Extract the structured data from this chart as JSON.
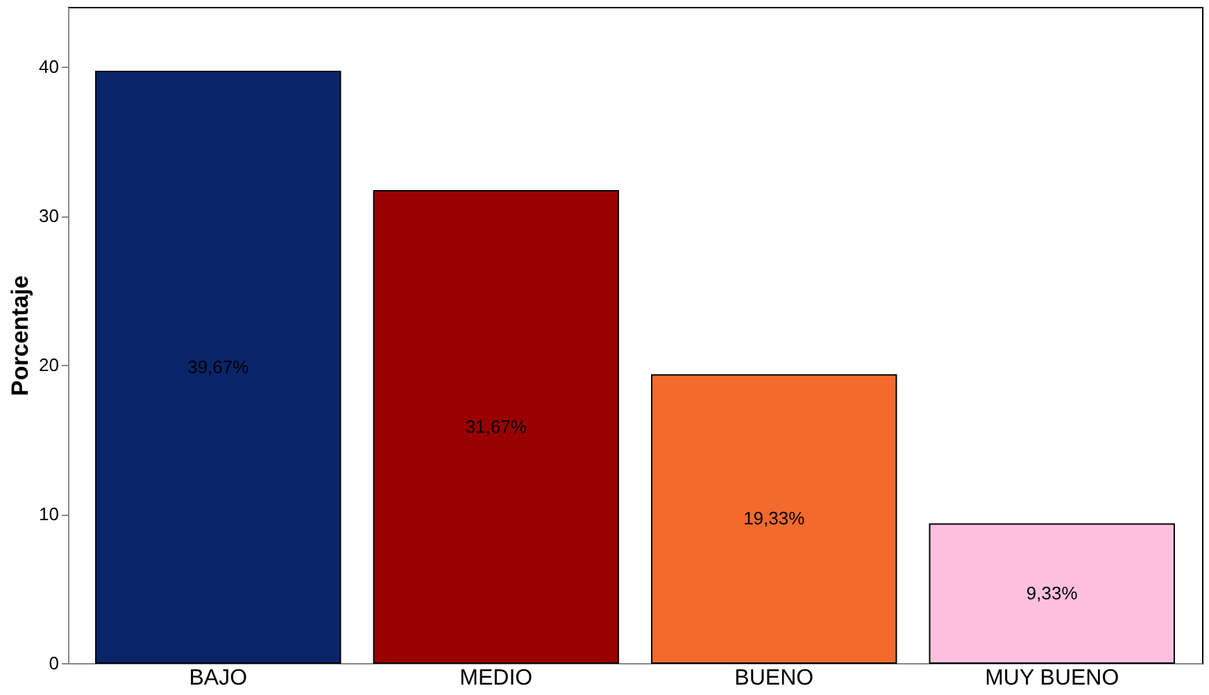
{
  "chart_data": {
    "type": "bar",
    "ylabel": "Porcentaje",
    "categories": [
      "BAJO",
      "MEDIO",
      "BUENO",
      "MUY BUENO"
    ],
    "values": [
      39.67,
      31.67,
      19.33,
      9.33
    ],
    "value_labels": [
      "39,67%",
      "31,67%",
      "19,33%",
      "9,33%"
    ],
    "colors": [
      "#0a246a",
      "#990000",
      "#f26a2e",
      "#ffc0e0"
    ],
    "ylim": [
      0,
      44
    ],
    "yticks": [
      0,
      10,
      20,
      30,
      40
    ],
    "grid": false
  }
}
